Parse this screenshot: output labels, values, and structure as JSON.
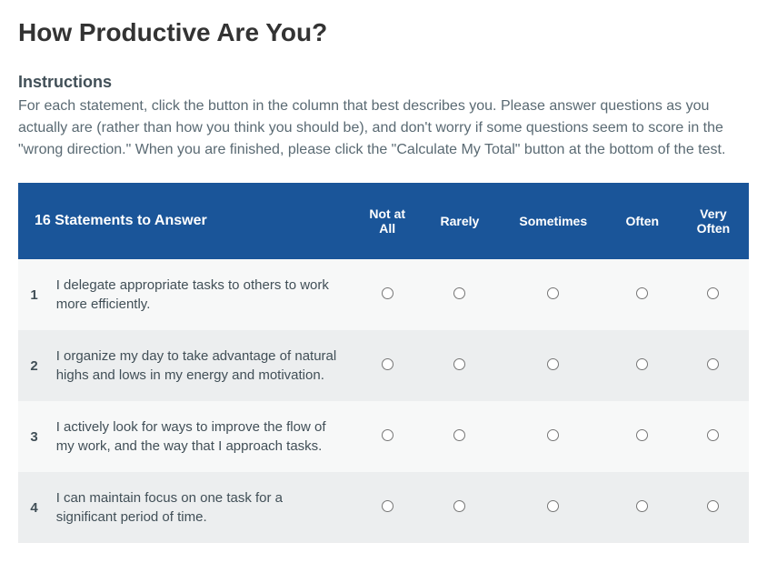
{
  "title": "How Productive Are You?",
  "instructions": {
    "heading": "Instructions",
    "body": "For each statement, click the button in the column that best describes you. Please answer questions as you actually are (rather than how you think you should be), and don't worry if some questions seem to score in the \"wrong direction.\" When you are finished, please click the \"Calculate My Total\" button at the bottom of the test."
  },
  "table": {
    "statements_header": "16 Statements to Answer",
    "options": [
      "Not at All",
      "Rarely",
      "Sometimes",
      "Often",
      "Very Often"
    ],
    "rows": [
      {
        "num": "1",
        "text": "I delegate appropriate tasks to others to work more efficiently."
      },
      {
        "num": "2",
        "text": "I organize my day to take advantage of natural highs and lows in my energy and motivation."
      },
      {
        "num": "3",
        "text": "I actively look for ways to improve the flow of my work, and the way that I approach tasks."
      },
      {
        "num": "4",
        "text": "I can maintain focus on one task for a significant period of time."
      }
    ]
  },
  "colors": {
    "header_bg": "#1a5599",
    "header_text": "#ffffff",
    "row_odd": "#f7f8f8",
    "row_even": "#eceeef",
    "title_color": "#333333",
    "body_text": "#5a6a73"
  },
  "typography": {
    "title_fontsize": 28,
    "instructions_heading_fontsize": 18,
    "body_fontsize": 16,
    "table_header_fontsize": 14,
    "table_body_fontsize": 15
  }
}
